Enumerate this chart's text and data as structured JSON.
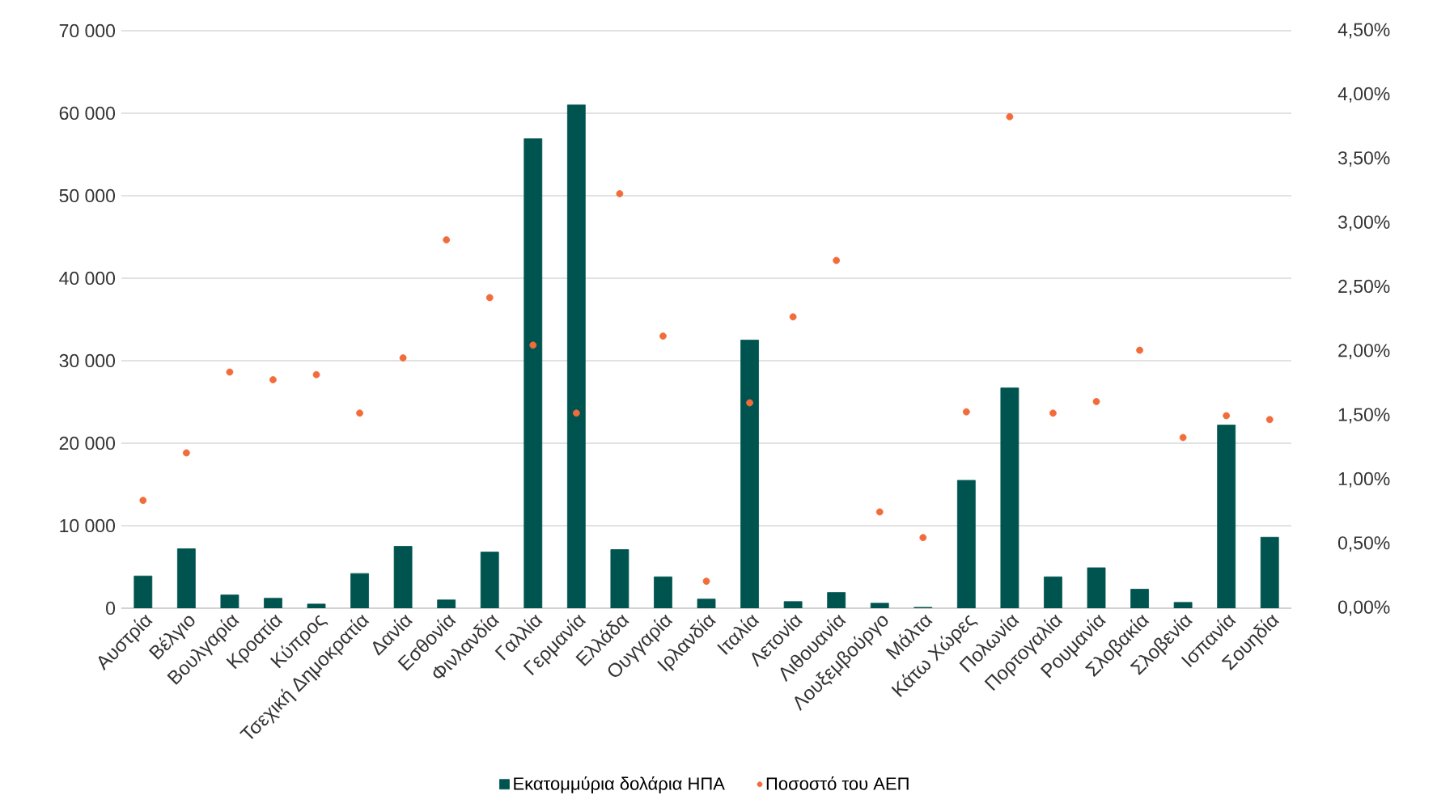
{
  "chart_data": {
    "type": "bar",
    "categories": [
      "Αυστρία",
      "Βέλγιο",
      "Βουλγαρία",
      "Κροατία",
      "Κύπρος",
      "Τσεχική Δημοκρατία",
      "Δανία",
      "Εσθονία",
      "Φινλανδία",
      "Γαλλία",
      "Γερμανία",
      "Ελλάδα",
      "Ουγγαρία",
      "Ιρλανδία",
      "Ιταλία",
      "Λετονία",
      "Λιθουανία",
      "Λουξεμβούργο",
      "Μάλτα",
      "Κάτω Χώρες",
      "Πολωνία",
      "Πορτογαλία",
      "Ρουμανία",
      "Σλοβακία",
      "Σλοβενία",
      "Ισπανία",
      "Σουηδία"
    ],
    "series": [
      {
        "name": "Εκατομμύρια δολάρια ΗΠΑ",
        "color": "#00544f",
        "values": [
          3900,
          7200,
          1600,
          1200,
          500,
          4200,
          7500,
          1000,
          6800,
          56900,
          61000,
          7100,
          3800,
          1100,
          32500,
          800,
          1900,
          600,
          100,
          15500,
          26700,
          3800,
          4900,
          2300,
          700,
          22200,
          8600
        ]
      },
      {
        "name": "Ποσοστό του ΑΕΠ",
        "color": "#f26b3a",
        "type": "scatter",
        "axis": "y2",
        "values": [
          0.84,
          1.21,
          1.84,
          1.78,
          1.82,
          1.52,
          1.95,
          2.87,
          2.42,
          2.05,
          1.52,
          3.23,
          2.12,
          0.21,
          1.6,
          2.27,
          2.71,
          0.75,
          0.55,
          1.53,
          3.83,
          1.52,
          1.61,
          2.01,
          1.33,
          1.5,
          1.47
        ]
      }
    ],
    "ylim": [
      0,
      70000
    ],
    "yticks": [
      0,
      {
        "value": 10000,
        "label": "10 000"
      },
      {
        "value": 20000,
        "label": "20 000"
      },
      {
        "value": 30000,
        "label": "30 000"
      },
      {
        "value": 40000,
        "label": "40 000"
      },
      {
        "value": 50000,
        "label": "50 000"
      },
      {
        "value": 60000,
        "label": "60 000"
      },
      {
        "value": 70000,
        "label": "70 000"
      }
    ],
    "y2lim": [
      0,
      4.5
    ],
    "y2ticks": [
      {
        "value": 0,
        "label": "0,00%"
      },
      {
        "value": 0.5,
        "label": "0,50%"
      },
      {
        "value": 1,
        "label": "1,00%"
      },
      {
        "value": 1.5,
        "label": "1,50%"
      },
      {
        "value": 2,
        "label": "2,00%"
      },
      {
        "value": 2.5,
        "label": "2,50%"
      },
      {
        "value": 3,
        "label": "3,00%"
      },
      {
        "value": 3.5,
        "label": "3,50%"
      },
      {
        "value": 4,
        "label": "4,00%"
      },
      {
        "value": 4.5,
        "label": "4,50%"
      }
    ],
    "grid": "y",
    "legend": "bottom"
  }
}
